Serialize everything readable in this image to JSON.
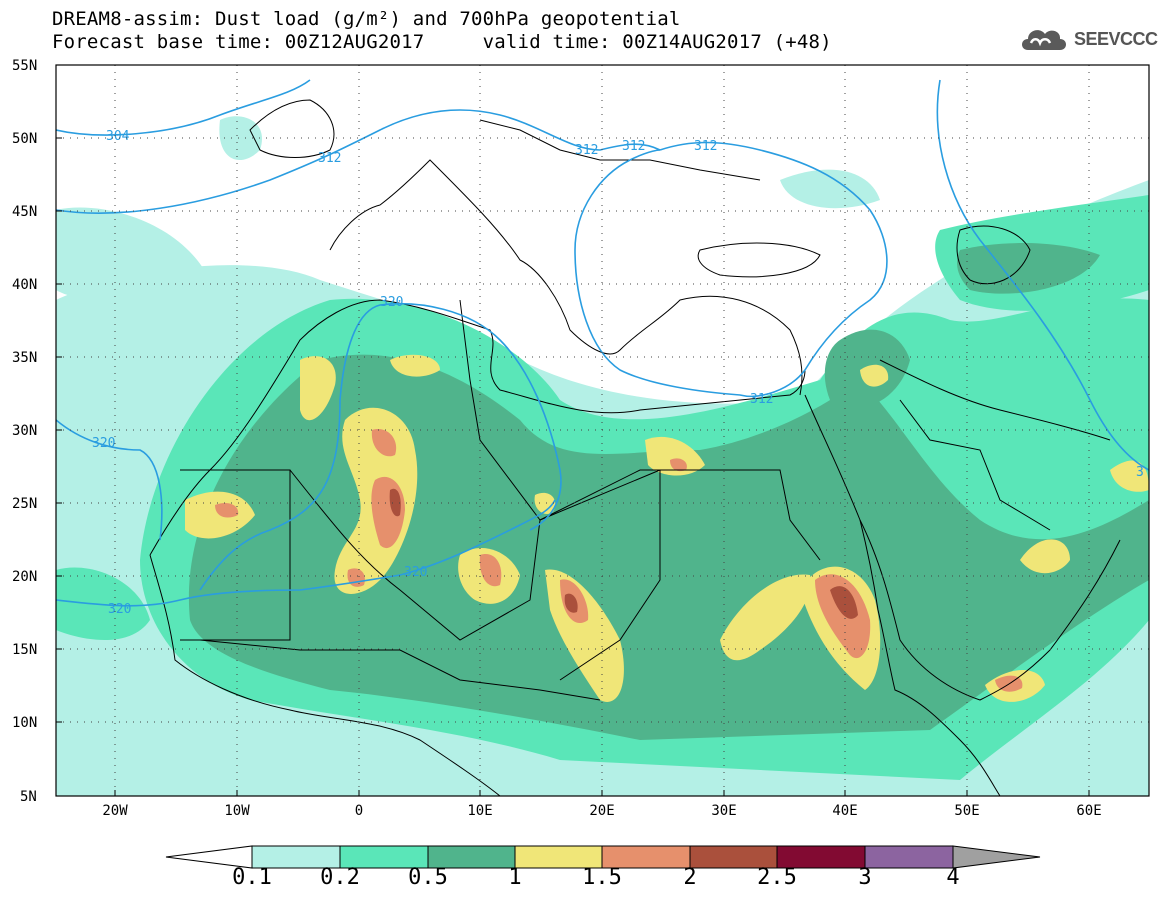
{
  "header": {
    "title_line1": "DREAM8-assim: Dust load (g/m²) and 700hPa geopotential",
    "title_line2": "Forecast base time: 00Z12AUG2017     valid time: 00Z14AUG2017 (+48)"
  },
  "logo": {
    "text": "SEEVCCC",
    "icon": "cloud-icon"
  },
  "map": {
    "lat_ticks": [
      "55N",
      "50N",
      "45N",
      "40N",
      "35N",
      "30N",
      "25N",
      "20N",
      "15N",
      "10N",
      "5N"
    ],
    "lon_ticks": [
      "20W",
      "10W",
      "0",
      "10E",
      "20E",
      "30E",
      "40E",
      "50E",
      "60E"
    ],
    "contour_labels": [
      "304",
      "312",
      "312",
      "312",
      "312",
      "312",
      "320",
      "320",
      "320",
      "320",
      "3"
    ]
  },
  "colorbar": {
    "levels": [
      "0.1",
      "0.2",
      "0.5",
      "1",
      "1.5",
      "2",
      "2.5",
      "3",
      "4"
    ],
    "colors": [
      "#b4f0e6",
      "#5ae6b8",
      "#50b48c",
      "#f0e678",
      "#e6906c",
      "#aa503c",
      "#820a32",
      "#8c64a0",
      "#a0a0a0"
    ]
  }
}
